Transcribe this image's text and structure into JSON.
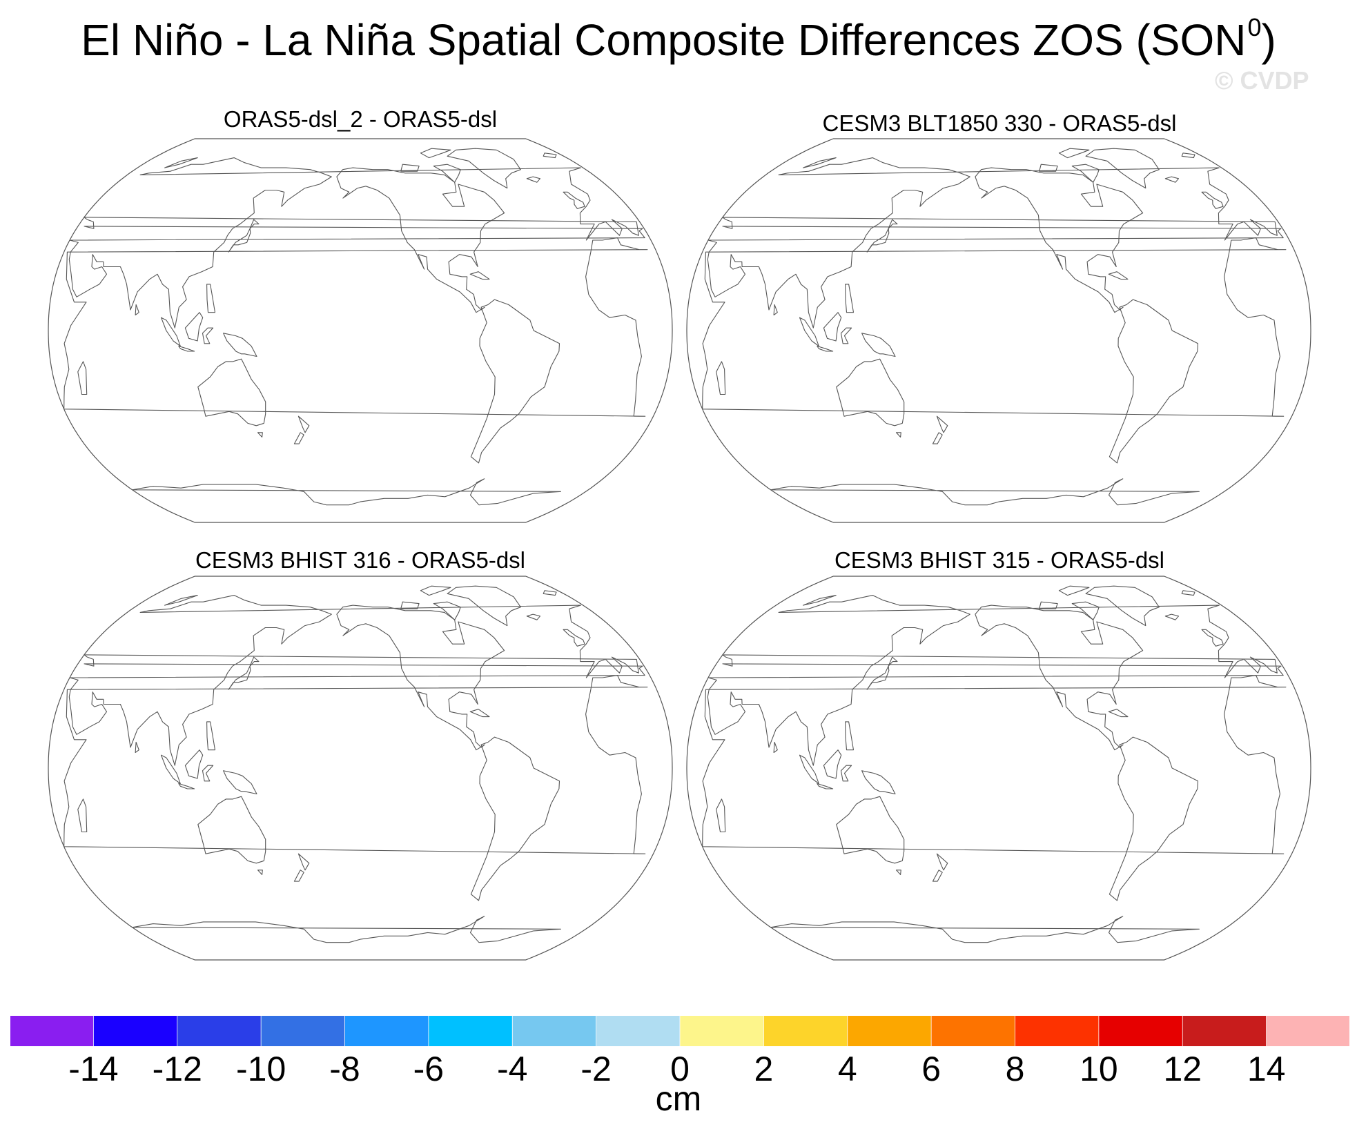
{
  "title": "El Niño - La Niña Spatial Composite Differences ZOS (SON",
  "title_superscript": "0",
  "title_close": ")",
  "watermark": "© CVDP",
  "panels": [
    {
      "title": "ORAS5-dsl_2 - ORAS5-dsl"
    },
    {
      "title": "CESM3 BLT1850 330 - ORAS5-dsl"
    },
    {
      "title": "CESM3 BHIST 316 - ORAS5-dsl"
    },
    {
      "title": "CESM3 BHIST 315 - ORAS5-dsl"
    }
  ],
  "map": {
    "projection": "Robinson",
    "center_longitude": "Pacific-centered",
    "coastline_color": "#555555",
    "fill": "none"
  },
  "colorbar": {
    "units": "cm",
    "colors": [
      "#8a1ef0",
      "#1a00ff",
      "#2a3ee8",
      "#3370e4",
      "#1e96ff",
      "#00c0ff",
      "#76c8f0",
      "#b0ddf2",
      "#fdf58b",
      "#fdd42a",
      "#fca700",
      "#fd7300",
      "#fd3200",
      "#e60000",
      "#c81c1c",
      "#fdb3b4"
    ],
    "ticks": [
      "-14",
      "-12",
      "-10",
      "-8",
      "-6",
      "-4",
      "-2",
      "0",
      "2",
      "4",
      "6",
      "8",
      "10",
      "12",
      "14"
    ]
  }
}
